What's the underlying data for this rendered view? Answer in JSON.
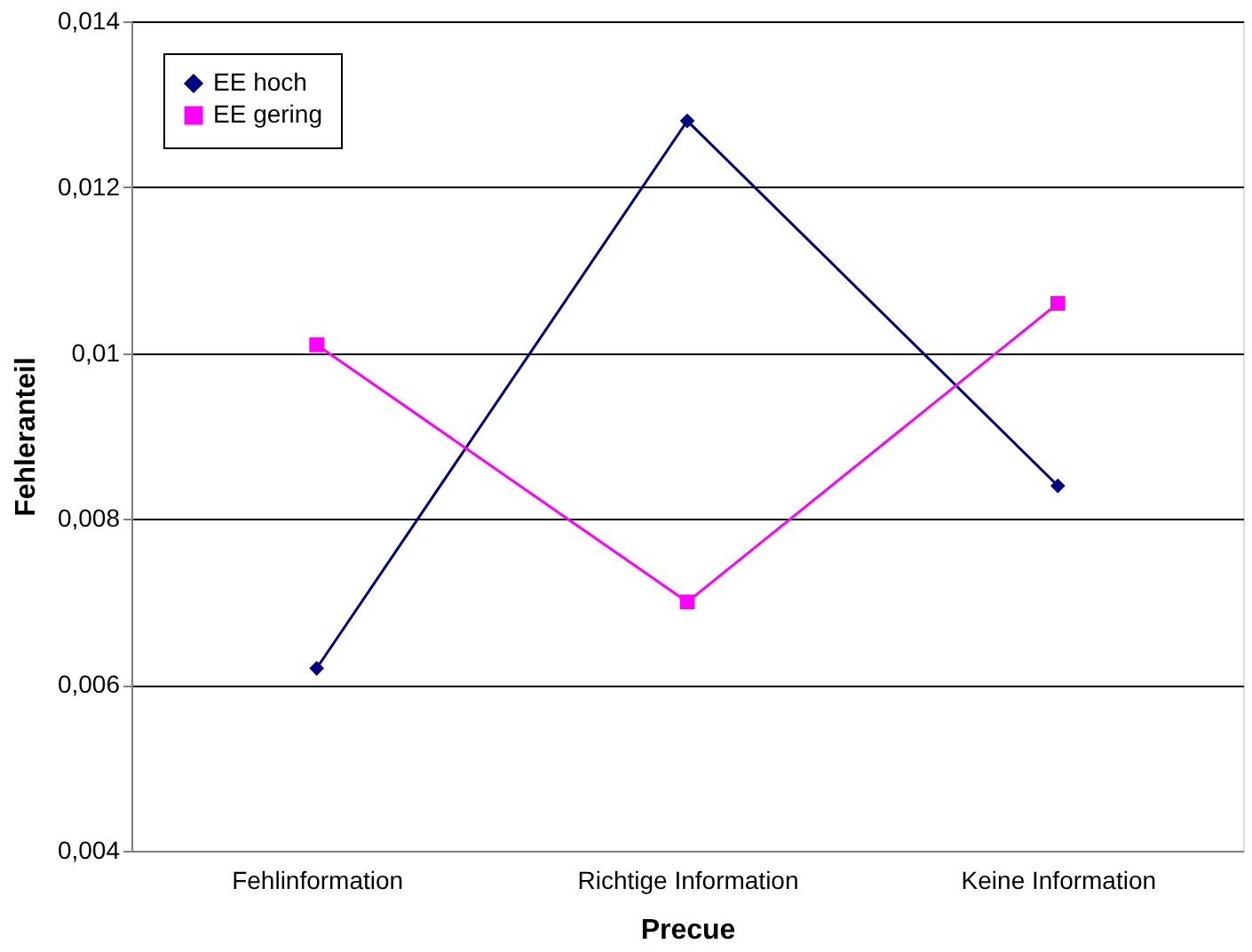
{
  "chart_data": {
    "type": "line",
    "xlabel": "Precue",
    "ylabel": "Fehleranteil",
    "categories": [
      "Fehlinformation",
      "Richtige Information",
      "Keine Information"
    ],
    "series": [
      {
        "name": "EE hoch",
        "color": "#000080",
        "marker": "diamond",
        "values": [
          0.0062,
          0.0128,
          0.0084
        ]
      },
      {
        "name": "EE gering",
        "color": "#ff00ff",
        "marker": "square",
        "values": [
          0.0101,
          0.007,
          0.0106
        ]
      }
    ],
    "ylim": [
      0.004,
      0.014
    ],
    "yticks": [
      {
        "value": 0.004,
        "label": "0,004"
      },
      {
        "value": 0.006,
        "label": "0,006"
      },
      {
        "value": 0.008,
        "label": "0,008"
      },
      {
        "value": 0.01,
        "label": "0,01"
      },
      {
        "value": 0.012,
        "label": "0,012"
      },
      {
        "value": 0.014,
        "label": "0,014"
      }
    ],
    "grid": "y",
    "legend": "top left",
    "line_style": "solid"
  }
}
